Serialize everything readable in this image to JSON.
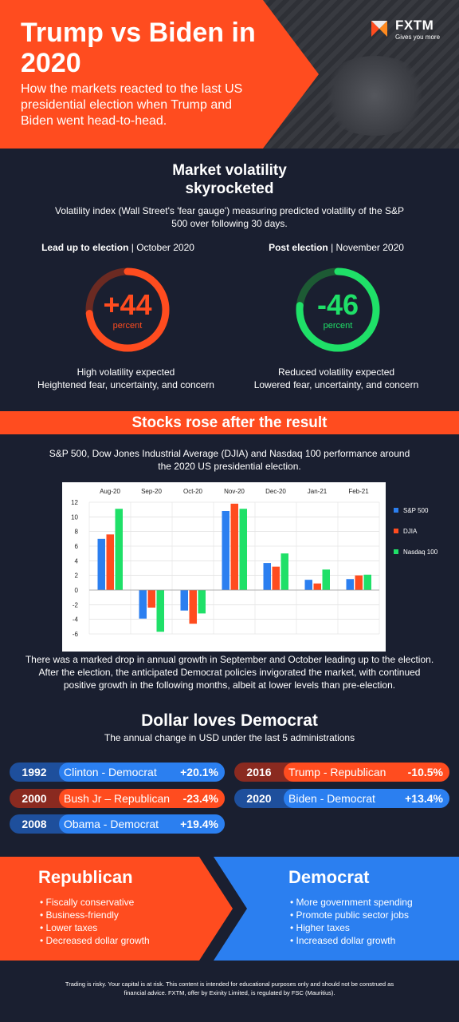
{
  "header": {
    "title": "Trump vs Biden in 2020",
    "subtitle": "How the markets reacted to the last US presidential election when Trump and Biden went head-to-head.",
    "logo": {
      "name": "FXTM",
      "tagline": "Gives you more"
    }
  },
  "volatility": {
    "title": "Market volatility skyrocketed",
    "description": "Volatility index (Wall Street's 'fear gauge') measuring predicted volatility of the S&P 500 over following 30 days.",
    "left": {
      "label_bold": "Lead up to election",
      "label_rest": " | October 2020",
      "value": "+44",
      "unit": "percent",
      "line1": "High volatility expected",
      "line2": "Heightened fear, uncertainty, and concern",
      "color": "#ff4c1f",
      "track": "#6b2a22"
    },
    "right": {
      "label_bold": "Post election",
      "label_rest": " | November 2020",
      "value": "-46",
      "unit": "percent",
      "line1": "Reduced volatility expected",
      "line2": "Lowered fear, uncertainty, and concern",
      "color": "#1fe068",
      "track": "#1d5a34"
    }
  },
  "stocks": {
    "banner": "Stocks rose after the result",
    "description": "S&P 500, Dow Jones Industrial Average (DJIA) and Nasdaq 100 performance around the 2020 US presidential election.",
    "note": "There was a marked drop in annual growth in September and October leading up to the election. After the election, the anticipated Democrat policies invigorated the market, with continued positive growth in the following months, albeit at lower levels than pre-election."
  },
  "chart_data": {
    "type": "bar",
    "categories": [
      "Aug-20",
      "Sep-20",
      "Oct-20",
      "Nov-20",
      "Dec-20",
      "Jan-21",
      "Feb-21"
    ],
    "series": [
      {
        "name": "S&P 500",
        "color": "#2b7ff0",
        "values": [
          7.0,
          -3.9,
          -2.8,
          10.8,
          3.7,
          1.4,
          1.5
        ]
      },
      {
        "name": "DJIA",
        "color": "#ff4c1f",
        "values": [
          7.6,
          -2.4,
          -4.6,
          11.8,
          3.2,
          0.9,
          2.0
        ]
      },
      {
        "name": "Nasdaq 100",
        "color": "#1fe068",
        "values": [
          11.1,
          -5.7,
          -3.2,
          11.1,
          5.0,
          2.8,
          2.1
        ]
      }
    ],
    "ylim": [
      -6,
      12
    ],
    "yticks": [
      "12",
      "10",
      "8",
      "6",
      "4",
      "2",
      "0",
      "-2",
      "-4",
      "-6"
    ],
    "legend_position": "right",
    "grid": true
  },
  "dollar": {
    "title": "Dollar loves Democrat",
    "description": "The annual change in USD under the last 5 administrations",
    "items": [
      {
        "year": "1992",
        "label": "Clinton - Democrat",
        "pct": "+20.1%",
        "party": "dem"
      },
      {
        "year": "2016",
        "label": "Trump - Republican",
        "pct": "-10.5%",
        "party": "rep"
      },
      {
        "year": "2000",
        "label": "Bush Jr – Republican",
        "pct": "-23.4%",
        "party": "rep"
      },
      {
        "year": "2020",
        "label": "Biden - Democrat",
        "pct": "+13.4%",
        "party": "dem"
      },
      {
        "year": "2008",
        "label": "Obama - Democrat",
        "pct": "+19.4%",
        "party": "dem"
      }
    ]
  },
  "parties": {
    "republican": {
      "title": "Republican",
      "items": [
        "Fiscally conservative",
        "Business-friendly",
        "Lower taxes",
        "Decreased dollar growth"
      ]
    },
    "democrat": {
      "title": "Democrat",
      "items": [
        "More government spending",
        "Promote public sector jobs",
        "Higher taxes",
        "Increased dollar growth"
      ]
    }
  },
  "footer": "Trading is risky. Your capital is at risk. This content is intended for educational purposes only and should not be construed as financial advice. FXTM, offer by Exinity Limited, is regulated by FSC (Mauritius)."
}
